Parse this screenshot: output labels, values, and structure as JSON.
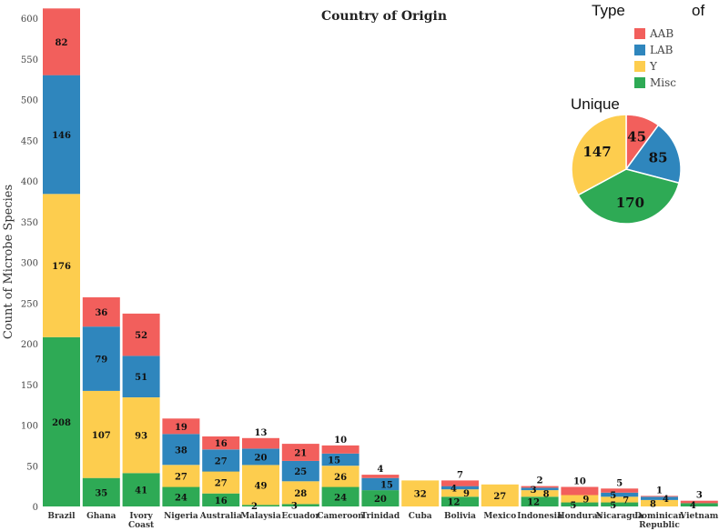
{
  "chart_data": {
    "type": "bar",
    "stacked": true,
    "title": "Country of Origin",
    "xlabel": "",
    "ylabel": "Count of Microbe Species",
    "ylim": [
      0,
      620
    ],
    "yticks": [
      0,
      50,
      100,
      150,
      200,
      250,
      300,
      350,
      400,
      450,
      500,
      550,
      600
    ],
    "grid": false,
    "colors": {
      "AAB": "#f25f5c",
      "LAB": "#2f86bd",
      "Y": "#fdcd4e",
      "Misc": "#2eaa55"
    },
    "categories": [
      [
        "Brazil"
      ],
      [
        "Ghana"
      ],
      [
        "Ivory",
        "Coast"
      ],
      [
        "Nigeria"
      ],
      [
        "Australia"
      ],
      [
        "Malaysia"
      ],
      [
        "Ecuador"
      ],
      [
        "Cameroon"
      ],
      [
        "Trinidad"
      ],
      [
        "Cuba"
      ],
      [
        "Bolivia"
      ],
      [
        "Mexico"
      ],
      [
        "Indonesia"
      ],
      [
        "Honduras"
      ],
      [
        "Nicaragua"
      ],
      [
        "Dominican",
        "Republic"
      ],
      [
        "Vietnam"
      ]
    ],
    "series": [
      {
        "name": "Misc",
        "values": [
          208,
          35,
          41,
          24,
          16,
          2,
          3,
          24,
          20,
          0,
          12,
          0,
          12,
          5,
          5,
          0,
          4
        ]
      },
      {
        "name": "Y",
        "values": [
          176,
          107,
          93,
          27,
          27,
          49,
          28,
          26,
          0,
          32,
          9,
          27,
          8,
          9,
          7,
          8,
          0
        ]
      },
      {
        "name": "LAB",
        "values": [
          146,
          79,
          51,
          38,
          27,
          20,
          25,
          15,
          15,
          0,
          4,
          0,
          3,
          0,
          5,
          4,
          0
        ]
      },
      {
        "name": "AAB",
        "values": [
          82,
          36,
          52,
          19,
          16,
          13,
          21,
          10,
          4,
          0,
          7,
          0,
          2,
          10,
          5,
          1,
          3
        ]
      }
    ],
    "legend": {
      "title_words": [
        "Type",
        "of",
        "Unique"
      ],
      "placement": "top-right",
      "entries": [
        "AAB",
        "LAB",
        "Y",
        "Misc"
      ]
    },
    "pie": {
      "type": "pie",
      "slices": [
        {
          "label": "AAB",
          "value": 45
        },
        {
          "label": "LAB",
          "value": 85
        },
        {
          "label": "Misc",
          "value": 170
        },
        {
          "label": "Y",
          "value": 147
        }
      ]
    }
  }
}
